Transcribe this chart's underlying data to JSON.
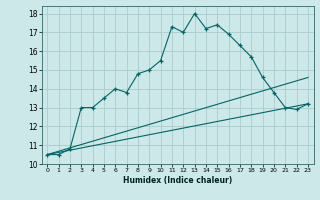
{
  "xlabel": "Humidex (Indice chaleur)",
  "bg_color": "#cce8e8",
  "grid_color": "#aacccc",
  "line_color": "#006666",
  "xlim": [
    -0.5,
    23.5
  ],
  "ylim": [
    10,
    18.4
  ],
  "yticks": [
    10,
    11,
    12,
    13,
    14,
    15,
    16,
    17,
    18
  ],
  "xticks": [
    0,
    1,
    2,
    3,
    4,
    5,
    6,
    7,
    8,
    9,
    10,
    11,
    12,
    13,
    14,
    15,
    16,
    17,
    18,
    19,
    20,
    21,
    22,
    23
  ],
  "series1_x": [
    0,
    1,
    2,
    3,
    4,
    5,
    6,
    7,
    8,
    9,
    10,
    11,
    12,
    13,
    14,
    15,
    16,
    17,
    18,
    19,
    20,
    21,
    22,
    23
  ],
  "series1_y": [
    10.5,
    10.5,
    10.8,
    13.0,
    13.0,
    13.5,
    14.0,
    13.8,
    14.8,
    15.0,
    15.5,
    17.3,
    17.0,
    18.0,
    17.2,
    17.4,
    16.9,
    16.3,
    15.7,
    14.6,
    13.8,
    13.0,
    12.9,
    13.2
  ],
  "series2_x": [
    0,
    23
  ],
  "series2_y": [
    10.5,
    13.2
  ],
  "series3_x": [
    0,
    23
  ],
  "series3_y": [
    10.5,
    14.6
  ]
}
